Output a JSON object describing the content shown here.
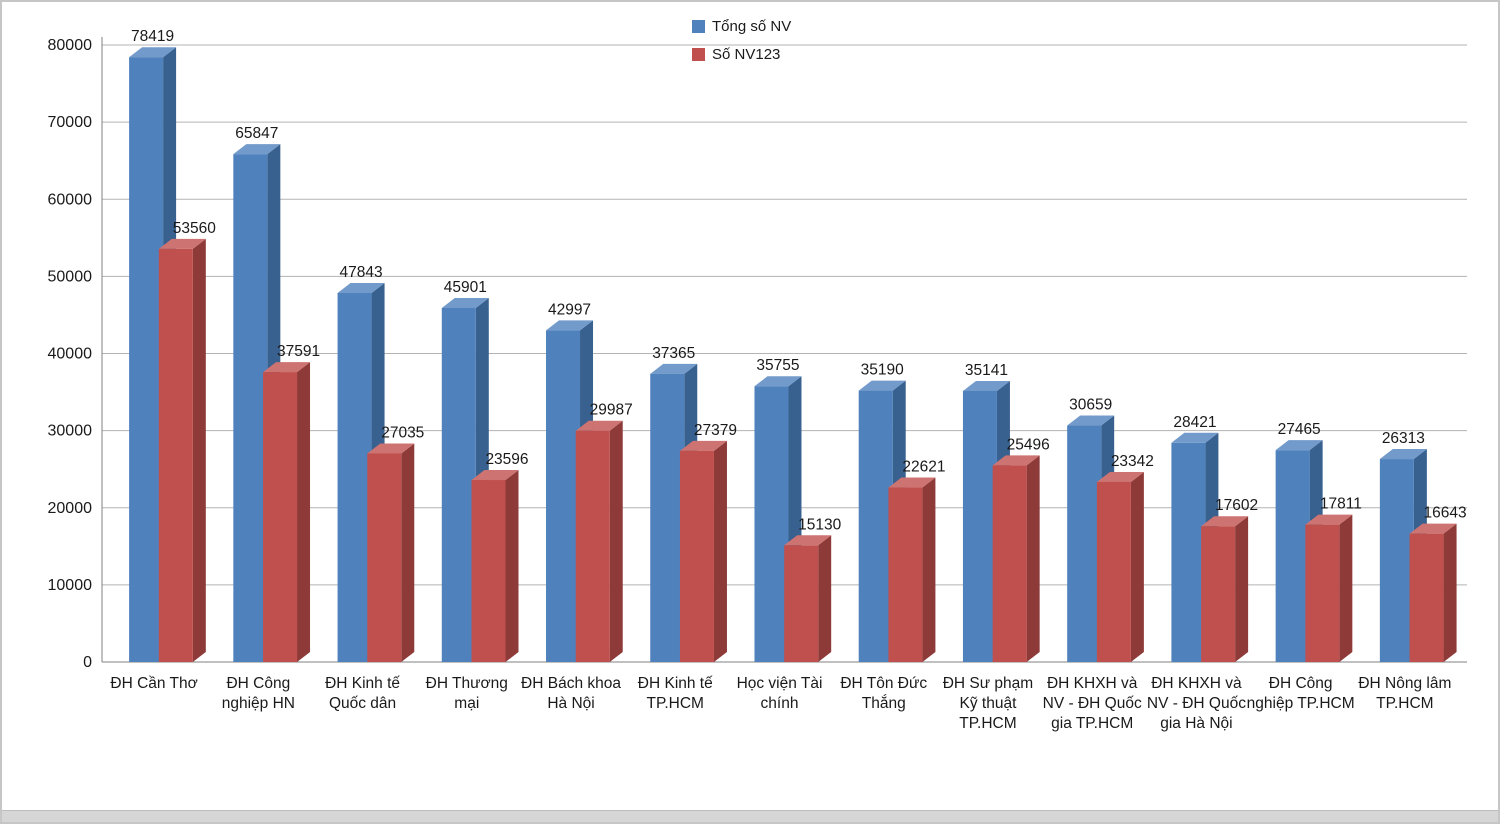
{
  "chart_data": {
    "type": "bar",
    "style": "3d-clustered",
    "title": "",
    "xlabel": "",
    "ylabel": "",
    "ylim": [
      0,
      80000
    ],
    "ytick_step": 10000,
    "grid": true,
    "legend_position": "top-center",
    "categories": [
      "ĐH Cần Thơ",
      "ĐH Công nghiệp HN",
      "ĐH Kinh tế Quốc dân",
      "ĐH Thương mại",
      "ĐH Bách khoa Hà Nội",
      "ĐH Kinh tế TP.HCM",
      "Học viện Tài chính",
      "ĐH Tôn Đức Thắng",
      "ĐH Sư phạm Kỹ thuật TP.HCM",
      "ĐH KHXH và NV - ĐH Quốc gia TP.HCM",
      "ĐH KHXH và NV - ĐH Quốc gia Hà Nội",
      "ĐH Công nghiệp TP.HCM",
      "ĐH Nông lâm TP.HCM"
    ],
    "series": [
      {
        "name": "Tổng số NV",
        "color": "#4f81bd",
        "color_top": "#729aca",
        "color_side": "#38618f",
        "values": [
          78419,
          65847,
          47843,
          45901,
          42997,
          37365,
          35755,
          35190,
          35141,
          30659,
          28421,
          27465,
          26313
        ]
      },
      {
        "name": "Số NV123",
        "color": "#c0504d",
        "color_top": "#cd7371",
        "color_side": "#8e3a38",
        "values": [
          53560,
          37591,
          27035,
          23596,
          29987,
          27379,
          15130,
          22621,
          25496,
          23342,
          17602,
          17811,
          16643
        ]
      }
    ],
    "colors": {
      "gridline": "#b3b3b3",
      "axis": "#808080",
      "text": "#1a1a1a"
    }
  }
}
